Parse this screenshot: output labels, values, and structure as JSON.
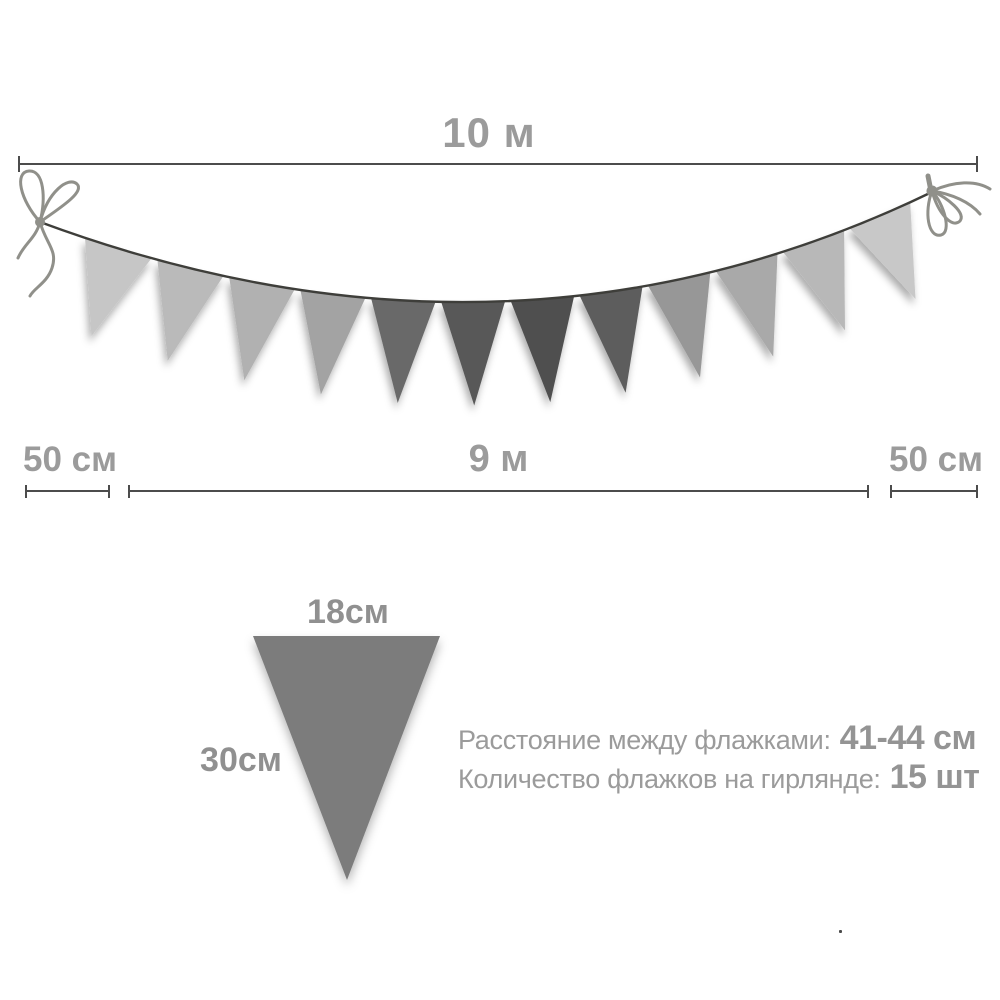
{
  "diagram": {
    "total_length_label": "10 м",
    "tail_left_label": "50 см",
    "flags_span_label": "9 м",
    "tail_right_label": "50 см",
    "flag_width_label": "18см",
    "flag_height_label": "30см",
    "specs": [
      {
        "label": "Расстояние между флажками:",
        "value": "41-44 см"
      },
      {
        "label": "Количество флажков на гирлянде:",
        "value": "15 шт"
      }
    ],
    "visible_flag_count": 12,
    "colors": {
      "dimension_line": "#4c4c4c",
      "label_text": "#9b9b9b",
      "string": "#3e3e3a",
      "bow": "#90908a",
      "sample_flag": "#7b7b7b",
      "flag_shades": [
        "#c6c6c6",
        "#bababa",
        "#b1b1b1",
        "#a3a3a3",
        "#696969",
        "#585858",
        "#4f4f4f",
        "#5d5d5d",
        "#979797",
        "#a9a9a9",
        "#b8b8b8",
        "#c8c8c8"
      ]
    }
  }
}
